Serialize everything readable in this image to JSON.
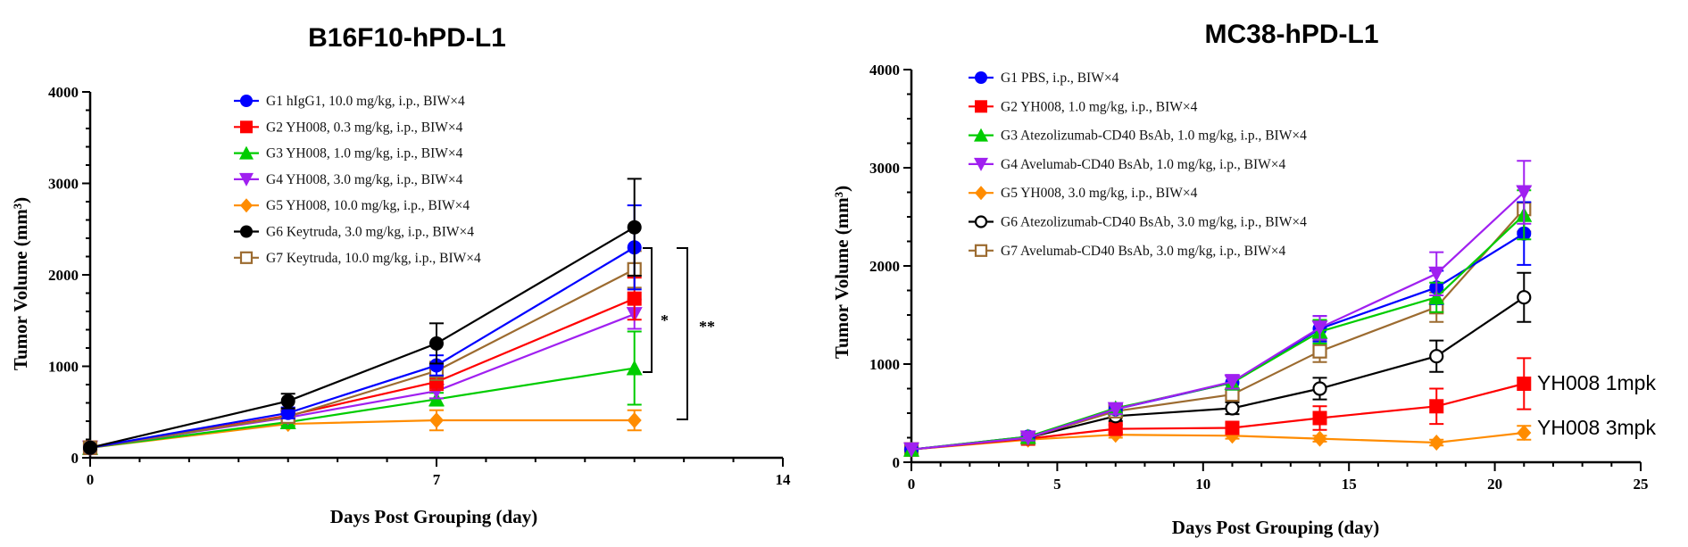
{
  "colors": {
    "blue": "#0000ff",
    "red": "#ff0000",
    "green": "#00cc00",
    "purple": "#a020f0",
    "orange": "#ff8c00",
    "black": "#000000",
    "brown": "#9c6b30"
  },
  "chart_data": [
    {
      "type": "line",
      "title": "B16F10-hPD-L1",
      "xlabel": "Days Post Grouping (day)",
      "ylabel": "Tumor Volume (mm³)",
      "xlim": [
        0,
        14
      ],
      "ylim": [
        0,
        4000
      ],
      "xticks": [
        "0",
        "7",
        "14"
      ],
      "yticks": [
        "0",
        "1000",
        "2000",
        "3000",
        "4000"
      ],
      "x": [
        0,
        4,
        7,
        11
      ],
      "legend_position": "top-center",
      "series": [
        {
          "name": "G1 hIgG1, 10.0 mg/kg, i.p., BIW×4",
          "color": "#0000ff",
          "marker": "circle",
          "values": [
            110,
            490,
            1010,
            2300
          ],
          "errors": [
            0,
            60,
            110,
            460
          ]
        },
        {
          "name": "G2 YH008, 0.3 mg/kg, i.p., BIW×4",
          "color": "#ff0000",
          "marker": "square",
          "values": [
            110,
            460,
            830,
            1740
          ],
          "errors": [
            0,
            50,
            90,
            230
          ]
        },
        {
          "name": "G3 YH008, 1.0 mg/kg, i.p., BIW×4",
          "color": "#00cc00",
          "marker": "triangle-up",
          "values": [
            110,
            390,
            640,
            980
          ],
          "errors": [
            0,
            40,
            70,
            400
          ]
        },
        {
          "name": "G4 YH008, 3.0 mg/kg, i.p., BIW×4",
          "color": "#a020f0",
          "marker": "triangle-down",
          "values": [
            110,
            440,
            730,
            1570
          ],
          "errors": [
            0,
            50,
            80,
            160
          ]
        },
        {
          "name": "G5 YH008, 10.0 mg/kg, i.p., BIW×4",
          "color": "#ff8c00",
          "marker": "diamond",
          "values": [
            110,
            370,
            410,
            410
          ],
          "errors": [
            0,
            40,
            110,
            110
          ]
        },
        {
          "name": "G6 Keytruda, 3.0 mg/kg, i.p., BIW×4",
          "color": "#000000",
          "marker": "circle",
          "values": [
            110,
            620,
            1250,
            2520
          ],
          "errors": [
            0,
            80,
            220,
            530
          ]
        },
        {
          "name": "G7 Keytruda, 10.0 mg/kg, i.p., BIW×4",
          "color": "#9c6b30",
          "marker": "square-open",
          "values": [
            110,
            450,
            950,
            2060
          ],
          "errors": [
            0,
            50,
            100,
            200
          ]
        }
      ],
      "annotations": [
        "*",
        "**"
      ]
    },
    {
      "type": "line",
      "title": "MC38-hPD-L1",
      "xlabel": "Days Post Grouping (day)",
      "ylabel": "Tumor Volume (mm³)",
      "xlim": [
        0,
        25
      ],
      "ylim": [
        0,
        4000
      ],
      "xticks": [
        "0",
        "5",
        "10",
        "15",
        "20",
        "25"
      ],
      "yticks": [
        "0",
        "1000",
        "2000",
        "3000",
        "4000"
      ],
      "x": [
        0,
        4,
        7,
        11,
        14,
        18,
        21
      ],
      "legend_position": "top-left",
      "series": [
        {
          "name": "G1 PBS, i.p., BIW×4",
          "color": "#0000ff",
          "marker": "circle",
          "values": [
            130,
            260,
            540,
            810,
            1360,
            1780,
            2330
          ],
          "errors": [
            0,
            30,
            50,
            70,
            130,
            170,
            320
          ]
        },
        {
          "name": "G2 YH008, 1.0 mg/kg, i.p., BIW×4",
          "color": "#ff0000",
          "marker": "square",
          "values": [
            130,
            240,
            340,
            350,
            450,
            570,
            800
          ],
          "errors": [
            0,
            30,
            40,
            50,
            120,
            180,
            260
          ]
        },
        {
          "name": "G3 Atezolizumab-CD40 BsAb, 1.0 mg/kg, i.p., BIW×4",
          "color": "#00cc00",
          "marker": "triangle-up",
          "values": [
            130,
            260,
            550,
            810,
            1330,
            1680,
            2520
          ],
          "errors": [
            0,
            30,
            50,
            70,
            120,
            150,
            250
          ]
        },
        {
          "name": "G4 Avelumab-CD40 BsAb, 1.0 mg/kg, i.p., BIW×4",
          "color": "#a020f0",
          "marker": "triangle-down",
          "values": [
            130,
            250,
            540,
            820,
            1370,
            1920,
            2750
          ],
          "errors": [
            0,
            30,
            50,
            70,
            120,
            220,
            320
          ]
        },
        {
          "name": "G5 YH008, 3.0 mg/kg, i.p., BIW×4",
          "color": "#ff8c00",
          "marker": "diamond",
          "values": [
            130,
            230,
            280,
            270,
            240,
            200,
            300
          ],
          "errors": [
            0,
            20,
            30,
            30,
            30,
            30,
            70
          ]
        },
        {
          "name": "G6 Atezolizumab-CD40 BsAb, 3.0 mg/kg, i.p., BIW×4",
          "color": "#000000",
          "marker": "circle-open",
          "values": [
            130,
            250,
            470,
            550,
            750,
            1080,
            1680
          ],
          "errors": [
            0,
            30,
            50,
            60,
            110,
            160,
            250
          ]
        },
        {
          "name": "G7 Avelumab-CD40 BsAb, 3.0 mg/kg, i.p., BIW×4",
          "color": "#9c6b30",
          "marker": "square-open",
          "values": [
            130,
            250,
            520,
            690,
            1130,
            1580,
            2580
          ],
          "errors": [
            0,
            30,
            50,
            60,
            110,
            150,
            230
          ]
        }
      ],
      "annotations": [
        "YH008 1mpk",
        "YH008 3mpk"
      ]
    }
  ]
}
